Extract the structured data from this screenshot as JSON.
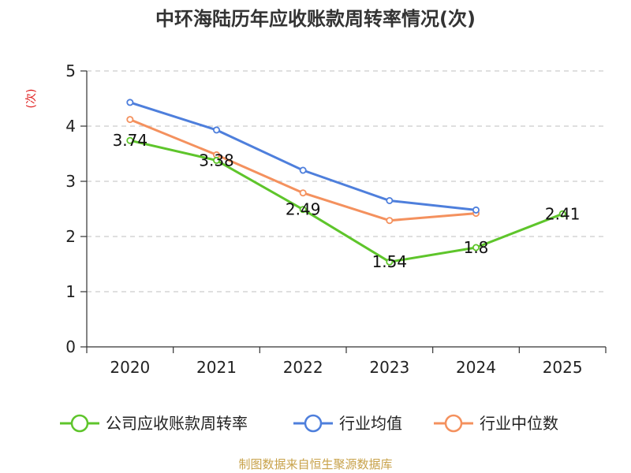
{
  "chart_data": {
    "type": "line",
    "title": "中环海陆历年应收账款周转率情况(次)",
    "ylabel": "(次)",
    "xlabel": "",
    "categories": [
      "2020",
      "2021",
      "2022",
      "2023",
      "2024",
      "2025"
    ],
    "ylim": [
      0,
      5
    ],
    "yticks": [
      0,
      1,
      2,
      3,
      4,
      5
    ],
    "grid": true,
    "legend_position": "bottom",
    "series": [
      {
        "name": "公司应收账款周转率",
        "color": "#5ec52b",
        "values": [
          3.74,
          3.38,
          2.49,
          1.54,
          1.8,
          2.41
        ],
        "labels": [
          "3.74",
          "3.38",
          "2.49",
          "1.54",
          "1.8",
          "2.41"
        ]
      },
      {
        "name": "行业均值",
        "color": "#4e7fdc",
        "values": [
          4.43,
          3.93,
          3.2,
          2.65,
          2.48,
          null
        ]
      },
      {
        "name": "行业中位数",
        "color": "#f4915e",
        "values": [
          4.12,
          3.48,
          2.79,
          2.29,
          2.42,
          null
        ]
      }
    ],
    "source": "制图数据来自恒生聚源数据库",
    "ylabel_color": "#e02020",
    "source_color": "#c8a24a"
  }
}
